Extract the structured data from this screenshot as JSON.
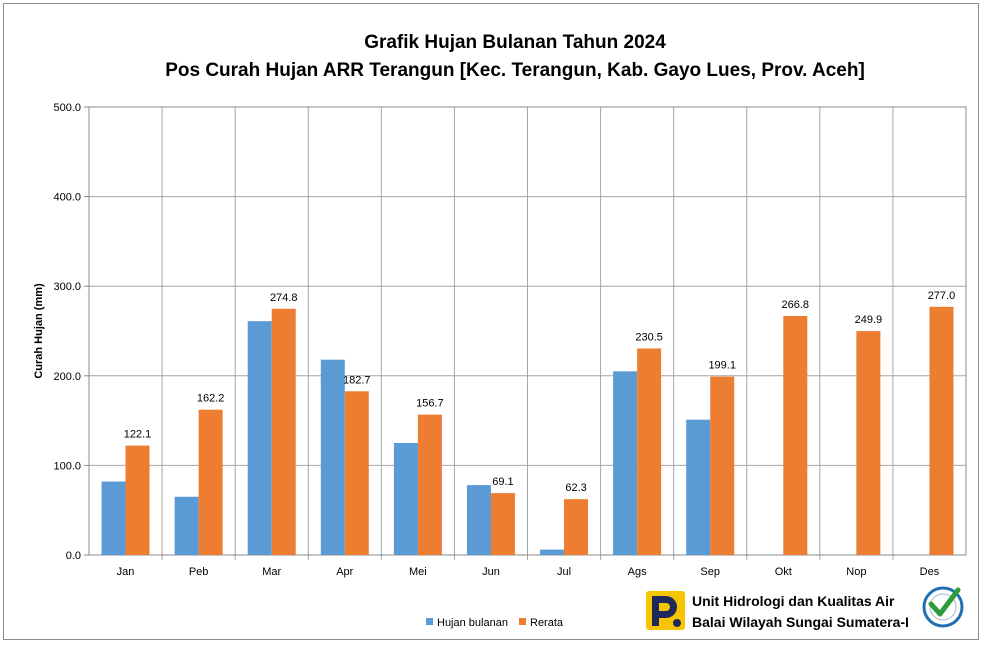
{
  "colors": {
    "series_1": "#5b9bd5",
    "series_2": "#ed7d31",
    "grid": "#a6a6a6",
    "plot_border": "#8c8c8c",
    "logo_yellow": "#f7c600",
    "logo_navy": "#1f2a5c",
    "badge_green": "#2e9b3a",
    "badge_blue": "#1f6fb2"
  },
  "footer": {
    "unit_line1": "Unit Hidrologi dan Kualitas Air",
    "unit_line2": "Balai Wilayah Sungai Sumatera-I",
    "badge_icon": "certified-badge-icon",
    "logo_icon": "pu-logo-icon"
  },
  "chart_data": {
    "type": "bar",
    "title": "Grafik Hujan Bulanan Tahun 2024",
    "subtitle": "Pos Curah Hujan ARR Terangun [Kec. Terangun, Kab. Gayo Lues, Prov. Aceh]",
    "xlabel": "",
    "ylabel": "Curah Hujan (mm)",
    "ylim": [
      0,
      500
    ],
    "yticks": [
      "0.0",
      "100.0",
      "200.0",
      "300.0",
      "400.0",
      "500.0"
    ],
    "grid": true,
    "legend_position": "bottom",
    "categories": [
      "Jan",
      "Peb",
      "Mar",
      "Apr",
      "Mei",
      "Jun",
      "Jul",
      "Ags",
      "Sep",
      "Okt",
      "Nop",
      "Des"
    ],
    "series": [
      {
        "name": "Hujan bulanan",
        "values": [
          82,
          65,
          261,
          218,
          125,
          78,
          6,
          205,
          151,
          null,
          null,
          null
        ],
        "labels": [
          "",
          "",
          "",
          "",
          "",
          "",
          "",
          "",
          "",
          "",
          "",
          ""
        ]
      },
      {
        "name": "Rerata",
        "values": [
          122.1,
          162.2,
          274.8,
          182.7,
          156.7,
          69.1,
          62.3,
          230.5,
          199.1,
          266.8,
          249.9,
          277.0
        ],
        "labels": [
          "122.1",
          "162.2",
          "274.8",
          "182.7",
          "156.7",
          "69.1",
          "62.3",
          "230.5",
          "199.1",
          "266.8",
          "249.9",
          "277.0"
        ]
      }
    ]
  }
}
